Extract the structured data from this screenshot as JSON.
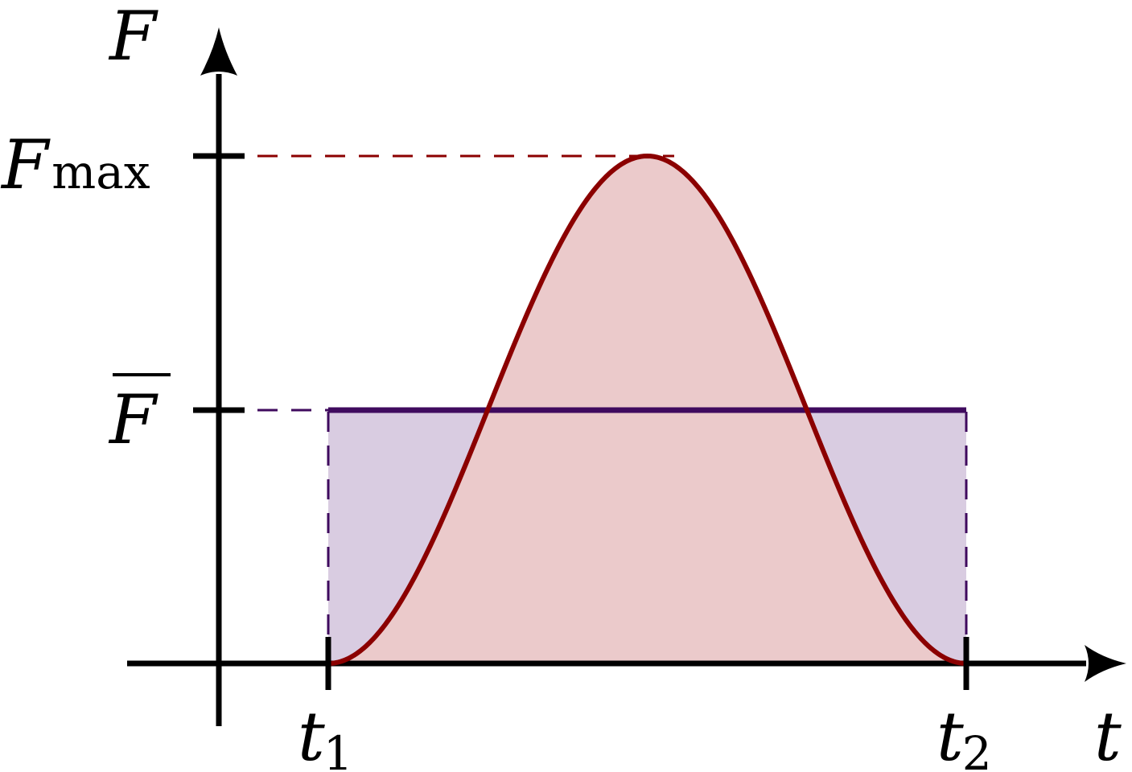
{
  "axes": {
    "x_label": "t",
    "y_label": "F"
  },
  "y_ticks": {
    "fmax": {
      "base": "F",
      "sub": "max"
    },
    "fbar": {
      "base": "F"
    }
  },
  "x_ticks": {
    "t1": {
      "base": "t",
      "sub": "1"
    },
    "t2": {
      "base": "t",
      "sub": "2"
    }
  },
  "colors": {
    "force_curve": "#8B0000",
    "force_fill": "#EBCACB",
    "average_line": "#3F0A5E",
    "average_fill": "#D9CCE1",
    "axes": "#000000"
  }
}
